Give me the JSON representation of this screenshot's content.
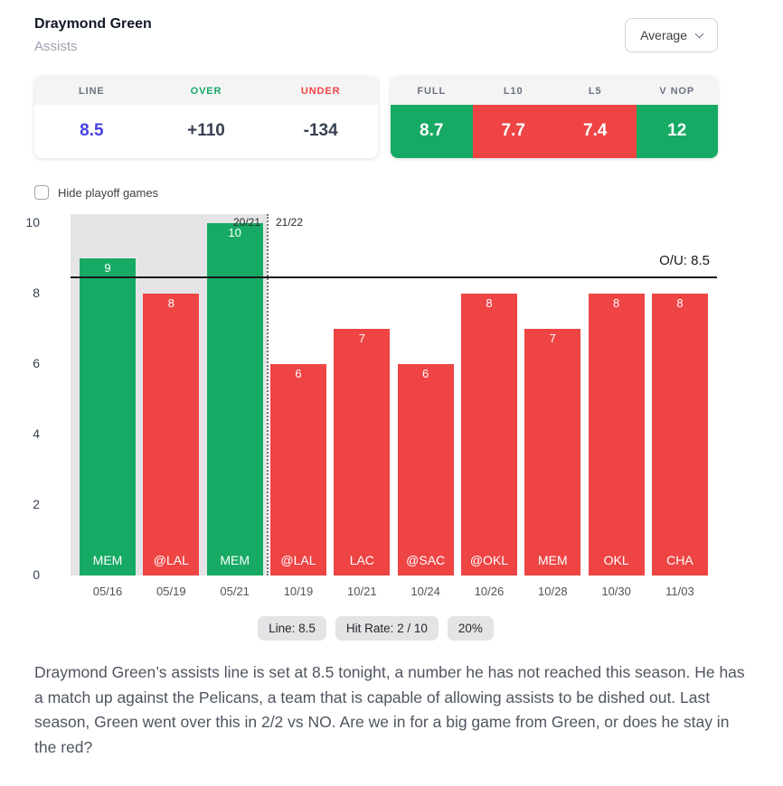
{
  "colors": {
    "green": "#17aa64",
    "red": "#ee4444",
    "blue": "#4643e3"
  },
  "header": {
    "player": "Draymond Green",
    "stat": "Assists",
    "average_dropdown": "Average"
  },
  "line_panel": {
    "columns": [
      {
        "label": "LINE",
        "value": "8.5",
        "label_color": "gray",
        "value_color": "blue"
      },
      {
        "label": "OVER",
        "value": "+110",
        "label_color": "green",
        "value_color": "dark"
      },
      {
        "label": "UNDER",
        "value": "-134",
        "label_color": "red",
        "value_color": "dark"
      }
    ]
  },
  "splits_panel": {
    "columns": [
      {
        "label": "FULL",
        "value": "8.7",
        "color": "green"
      },
      {
        "label": "L10",
        "value": "7.7",
        "color": "red"
      },
      {
        "label": "L5",
        "value": "7.4",
        "color": "red"
      },
      {
        "label": "V NOP",
        "value": "12",
        "color": "green"
      }
    ]
  },
  "playoff_toggle": {
    "label": "Hide playoff games",
    "checked": false
  },
  "chart_data": {
    "type": "bar",
    "ylabel": "",
    "xlabel": "",
    "ylim": [
      0,
      10
    ],
    "yticks": [
      0,
      2,
      4,
      6,
      8,
      10
    ],
    "line": {
      "value": 8.5,
      "label": "O/U: 8.5"
    },
    "seasons": {
      "left": "20/21",
      "right": "21/22",
      "divider_after_game_index": 2
    },
    "games": [
      {
        "date": "05/16",
        "opponent": "MEM",
        "value": 9,
        "color": "green",
        "playoff": true
      },
      {
        "date": "05/19",
        "opponent": "@LAL",
        "value": 8,
        "color": "red",
        "playoff": true
      },
      {
        "date": "05/21",
        "opponent": "MEM",
        "value": 10,
        "color": "green",
        "playoff": true
      },
      {
        "date": "10/19",
        "opponent": "@LAL",
        "value": 6,
        "color": "red",
        "playoff": false
      },
      {
        "date": "10/21",
        "opponent": "LAC",
        "value": 7,
        "color": "red",
        "playoff": false
      },
      {
        "date": "10/24",
        "opponent": "@SAC",
        "value": 6,
        "color": "red",
        "playoff": false
      },
      {
        "date": "10/26",
        "opponent": "@OKL",
        "value": 8,
        "color": "red",
        "playoff": false
      },
      {
        "date": "10/28",
        "opponent": "MEM",
        "value": 7,
        "color": "red",
        "playoff": false
      },
      {
        "date": "10/30",
        "opponent": "OKL",
        "value": 8,
        "color": "red",
        "playoff": false
      },
      {
        "date": "11/03",
        "opponent": "CHA",
        "value": 8,
        "color": "red",
        "playoff": false
      }
    ]
  },
  "pills": [
    "Line: 8.5",
    "Hit Rate: 2 / 10",
    "20%"
  ],
  "analysis": "Draymond Green’s assists line is set at 8.5 tonight, a number he has not reached this season. He has a match up against the Pelicans, a team that is capable of allowing assists to be dished out. Last season, Green went over this in 2/2 vs NO. Are we in for a big game from Green, or does he stay in the red?"
}
